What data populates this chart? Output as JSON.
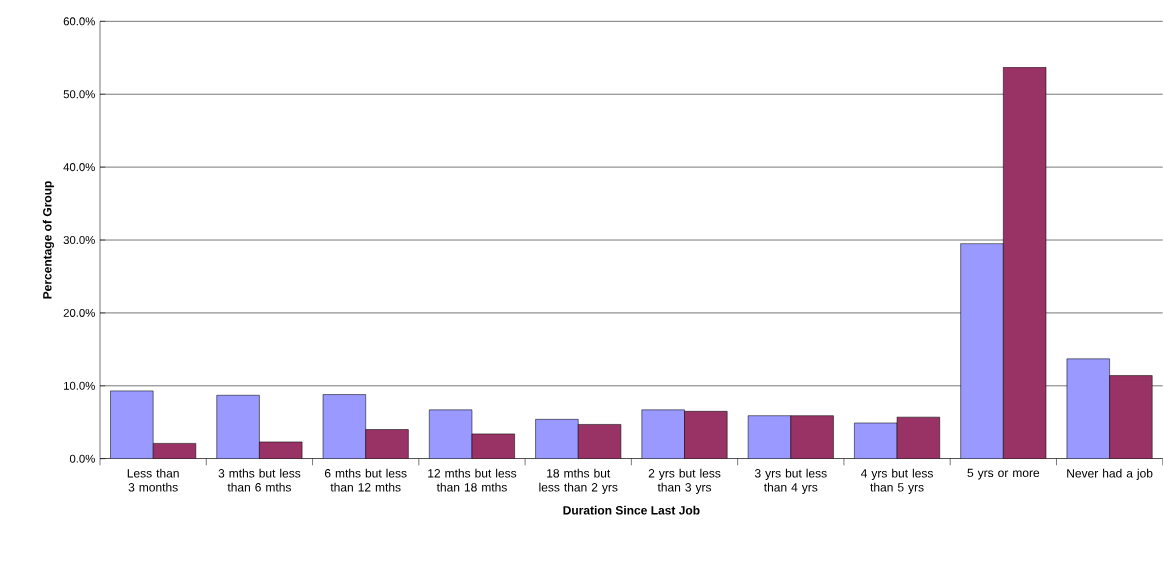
{
  "chart_data": {
    "type": "bar",
    "xlabel": "Duration Since Last Job",
    "ylabel": "Percentage of Group",
    "categories": [
      "Less than 3 months",
      "3 mths but less than 6 mths",
      "6 mths but less than 12 mths",
      "12 mths but less than 18 mths",
      "18 mths but less than 2 yrs",
      "2 yrs but less than 3 yrs",
      "3 yrs but less than 4 yrs",
      "4 yrs but less than 5 yrs",
      "5 yrs or more",
      "Never had a job"
    ],
    "series": [
      {
        "color": "#9999ff",
        "values": [
          9.3,
          8.7,
          8.8,
          6.7,
          5.4,
          6.7,
          5.9,
          4.9,
          29.5,
          13.7
        ]
      },
      {
        "color": "#993366",
        "values": [
          2.1,
          2.3,
          4.0,
          3.4,
          4.7,
          6.5,
          5.9,
          5.7,
          53.7,
          11.4
        ]
      }
    ],
    "ylim": [
      0,
      60
    ],
    "yticks": [
      {
        "value": 0,
        "label": "0.0%"
      },
      {
        "value": 10,
        "label": "10.0%"
      },
      {
        "value": 20,
        "label": "20.0%"
      },
      {
        "value": 30,
        "label": "30.0%"
      },
      {
        "value": 40,
        "label": "40.0%"
      },
      {
        "value": 50,
        "label": "50.0%"
      },
      {
        "value": 60,
        "label": "60.0%"
      }
    ],
    "grid": "y",
    "legend": false
  }
}
